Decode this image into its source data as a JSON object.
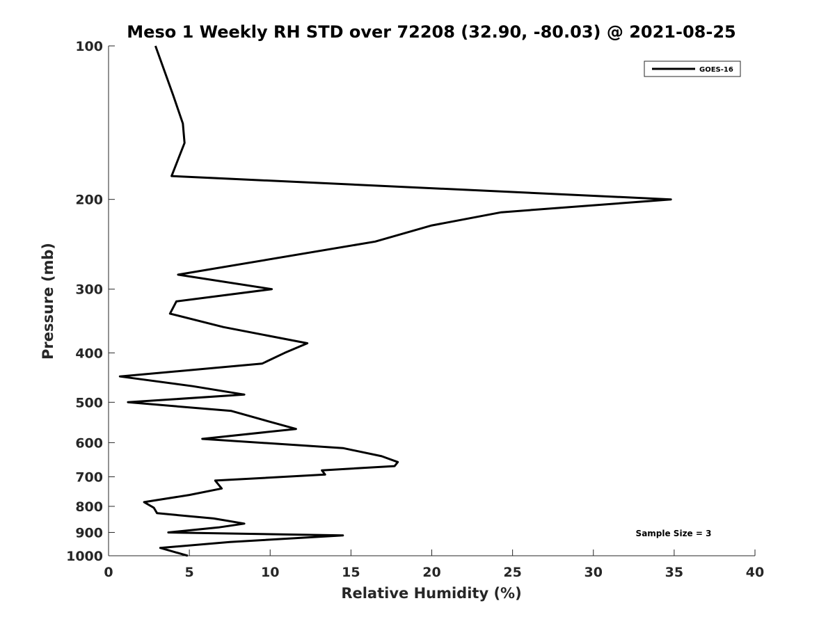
{
  "chart_data": {
    "type": "line",
    "title": "Meso 1 Weekly RH STD over 72208 (32.90, -80.03) @ 2021-08-25",
    "xlabel": "Relative Humidity (%)",
    "ylabel": "Pressure (mb)",
    "xlim": [
      0,
      40
    ],
    "ylim": [
      100,
      1000
    ],
    "y_scale": "log",
    "y_reversed": true,
    "xticks": [
      "0",
      "5",
      "10",
      "15",
      "20",
      "25",
      "30",
      "35",
      "40"
    ],
    "yticks": [
      "100",
      "200",
      "300",
      "400",
      "500",
      "600",
      "700",
      "800",
      "900",
      "1000"
    ],
    "grid": false,
    "legend": {
      "position": "top-right",
      "entries": [
        "GOES-16"
      ]
    },
    "annotation": "Sample Size = 3",
    "series": [
      {
        "name": "GOES-16",
        "color": "#000000",
        "points": [
          [
            2.9,
            100
          ],
          [
            4.0,
            125
          ],
          [
            4.6,
            142
          ],
          [
            4.7,
            155
          ],
          [
            3.9,
            180
          ],
          [
            34.8,
            200
          ],
          [
            24.3,
            212
          ],
          [
            20.0,
            225
          ],
          [
            16.5,
            242
          ],
          [
            4.3,
            281
          ],
          [
            10.1,
            300
          ],
          [
            4.2,
            317
          ],
          [
            3.8,
            335
          ],
          [
            7.1,
            356
          ],
          [
            12.3,
            383
          ],
          [
            10.9,
            400
          ],
          [
            9.5,
            420
          ],
          [
            0.7,
            445
          ],
          [
            5.2,
            465
          ],
          [
            8.4,
            483
          ],
          [
            1.2,
            500
          ],
          [
            7.6,
            520
          ],
          [
            9.9,
            545
          ],
          [
            11.6,
            564
          ],
          [
            5.8,
            590
          ],
          [
            14.5,
            615
          ],
          [
            16.9,
            638
          ],
          [
            17.9,
            655
          ],
          [
            17.7,
            667
          ],
          [
            13.2,
            680
          ],
          [
            13.4,
            693
          ],
          [
            6.6,
            712
          ],
          [
            7.0,
            738
          ],
          [
            5.0,
            760
          ],
          [
            2.2,
            785
          ],
          [
            2.8,
            805
          ],
          [
            3.0,
            825
          ],
          [
            6.5,
            845
          ],
          [
            8.4,
            865
          ],
          [
            6.8,
            880
          ],
          [
            3.7,
            900
          ],
          [
            14.5,
            912
          ],
          [
            7.5,
            940
          ],
          [
            3.2,
            965
          ],
          [
            4.9,
            1000
          ]
        ]
      }
    ]
  }
}
